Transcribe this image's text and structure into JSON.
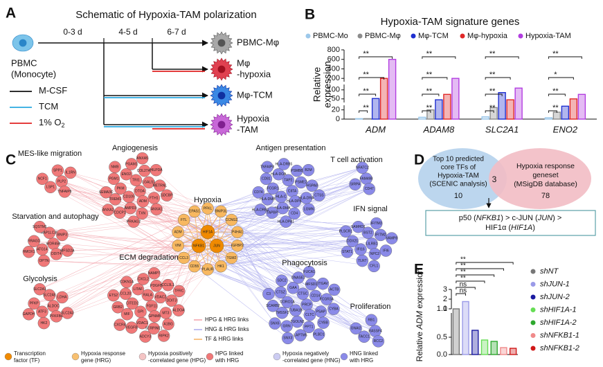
{
  "panel_labels": [
    "A",
    "B",
    "C",
    "D",
    "E"
  ],
  "schematic": {
    "title": "Schematic of Hypoxia-TAM polarization",
    "source_lines": [
      "PBMC",
      "(Monocyte)"
    ],
    "days": [
      "0-3 d",
      "4-5 d",
      "6-7 d"
    ],
    "outcomes": [
      [
        "PBMC-Mφ"
      ],
      [
        "Mφ",
        "-hypoxia"
      ],
      [
        "Mφ-TCM"
      ],
      [
        "Hypoxia",
        "-TAM"
      ]
    ],
    "legend": [
      {
        "label": "M-CSF",
        "color": "#111111"
      },
      {
        "label": "TCM",
        "color": "#2aa8e0"
      },
      {
        "label": "1% O",
        "sub": "2",
        "color": "#e02020"
      }
    ]
  },
  "chart_data": [
    {
      "type": "bar",
      "title": "Hypoxia-TAM signature genes",
      "y_label": [
        "Relative",
        "expression"
      ],
      "categories": [
        "ADM",
        "ADAM8",
        "SLC2A1",
        "ENO2"
      ],
      "series": [
        {
          "name": "PBMC-Mo",
          "color": "#9cc8ea",
          "values": [
            1,
            4,
            5,
            3
          ]
        },
        {
          "name": "PBMC-Mφ",
          "color": "#8c8c8c",
          "values": [
            1,
            20,
            25,
            15
          ]
        },
        {
          "name": "Mφ-TCM",
          "color": "#1f2fd0",
          "values": [
            52,
            45,
            85,
            28
          ]
        },
        {
          "name": "Mφ-hypoxia",
          "color": "#e02828",
          "values": [
            200,
            75,
            45,
            50
          ]
        },
        {
          "name": "Hypoxia-TAM",
          "color": "#b23de0",
          "values": [
            600,
            200,
            110,
            75
          ]
        }
      ],
      "ysegments": [
        {
          "ylim": [
            0,
            30
          ],
          "yticks": [
            0,
            20
          ]
        },
        {
          "ylim": [
            30,
            130
          ],
          "yticks": [
            50,
            100
          ]
        },
        {
          "ylim": [
            130,
            800
          ],
          "yticks": [
            200,
            400,
            600,
            800
          ]
        }
      ],
      "significance": [
        [
          "**",
          "**",
          "**",
          "**"
        ],
        [
          "**",
          "**",
          "**",
          "**"
        ],
        [
          "**",
          "**",
          "**",
          "**"
        ],
        [
          "**",
          "**",
          "*",
          "**"
        ]
      ]
    },
    {
      "type": "bar",
      "y_label": [
        "Relative ",
        "ADM",
        " expression"
      ],
      "categories": [
        "shNT",
        "shJUN-1",
        "shJUN-2",
        "shHIF1A-1",
        "shHIF1A-2",
        "shNFKB1-1",
        "shNFKB1-2"
      ],
      "values": [
        1.0,
        1.75,
        0.7,
        0.42,
        0.38,
        0.2,
        0.18
      ],
      "colors": [
        "#777777",
        "#9a9ae8",
        "#1a1aa0",
        "#66dd55",
        "#2ea82e",
        "#f08a8a",
        "#d01818"
      ],
      "ysegments": [
        {
          "ylim": [
            0,
            1.2
          ],
          "yticks": [
            {
              "value": 0,
              "label": "0.0"
            },
            0.5,
            {
              "value": 1,
              "label": "1.0"
            }
          ]
        },
        {
          "ylim": [
            1,
            3
          ],
          "yticks": [
            1,
            2,
            3
          ]
        }
      ],
      "significance": [
        "ns",
        "ns",
        "**",
        "**",
        "**",
        "**"
      ]
    }
  ],
  "network": {
    "clusters": [
      {
        "title": "MES-like migration",
        "color": "#f07878",
        "genes": [
          "PLP2",
          "LSP1",
          "SPP1",
          "TNFAIP6",
          "NCF1",
          "IL1RN"
        ]
      },
      {
        "title": "Angiogenesis",
        "color": "#f07878",
        "genes": [
          "DTOA",
          "CD109",
          "TRI1",
          "ADM",
          "PKM",
          "LGALS1",
          "AMPD3",
          "ENO2",
          "FTH1",
          "TREM1",
          "COL27A1",
          "TXN",
          "PGM1",
          "METRNL",
          "CDCP1",
          "PGAM1",
          "ANXA1",
          "SEMA3C",
          "HILPDA",
          "PRKAG2",
          "NMB",
          "SDCBP",
          "ANXA2",
          "ANXA5"
        ]
      },
      {
        "title": "Starvation and autophagy",
        "color": "#f07878",
        "genes": [
          "WDR45B",
          "ATG14",
          "MAP1LC3B",
          "DDIT4",
          "RRAGD",
          "BNIP3",
          "OPTN",
          "SQSTM1",
          "MFSD2A",
          "HMOX1"
        ]
      },
      {
        "title": "Glycolysis",
        "color": "#f07878",
        "genes": [
          "ALDOC",
          "ATF3",
          "SLC2A5",
          "PFKFB4",
          "PFKP",
          "LDHA",
          "HK2",
          "SLC2A1",
          "SLC2A3",
          "GAPDH"
        ]
      },
      {
        "title": "ECM degradation",
        "color": "#f07878",
        "genes": [
          "FGF11",
          "GPI",
          "RALA",
          "GPNMB",
          "CITED2",
          "VDAC2",
          "VDAC1",
          "LITAF",
          "MT3",
          "MIF",
          "PDGFB",
          "SERPINE1",
          "CCL20",
          "DDIT3",
          "VEGFB",
          "CXCL2",
          "A1BG",
          "GRB2",
          "CCL3L1",
          "ADCY3",
          "CDKN1A",
          "ALDOA",
          "CXCR4",
          "NAMPT",
          "RIPK2",
          "ETS2",
          "TFRC"
        ]
      },
      {
        "title": "Antigen presentation",
        "color": "#8a8ae8",
        "genes": [
          "CIITA",
          "HLA-C",
          "TAP2",
          "HLA-DPB1",
          "FCGR1",
          "PSME2",
          "HLA-DMA",
          "HLA-DOA",
          "HLA-DRA",
          "HLA-DMB",
          "PSMB8",
          "CD4",
          "CD81",
          "HSPA8",
          "TAPBP",
          "HLA-DRB5",
          "LGMN",
          "CD74",
          "B2M",
          "HLA-DPA1",
          "TNFAIP8",
          "CTSS",
          "HLA-DRB1"
        ]
      },
      {
        "title": "T cell activation",
        "color": "#8a8ae8",
        "genes": [
          "FAM49B",
          "SIRPA",
          "NFATC2",
          "CD47"
        ]
      },
      {
        "title": "IFN signal",
        "color": "#8a8ae8",
        "genes": [
          "LILRB1",
          "IFI16",
          "BST2",
          "NPC2",
          "DDX21",
          "IFITM2",
          "TLR7",
          "SAMHD1",
          "IFI6",
          "STAT1",
          "IFITM3",
          "CFL1",
          "PLSCR1",
          "VAMP8"
        ]
      },
      {
        "title": "Phagocytosis",
        "color": "#8a8ae8",
        "genes": [
          "PRCP",
          "TUBA1B",
          "CTSC",
          "CLTC",
          "CORO1A",
          "CD14",
          "TGOLN2",
          "GAA",
          "PSAP",
          "TMSSF2",
          "MFSD1",
          "PPT1",
          "CTSZ",
          "FCGR3A",
          "GRN",
          "DNASE2",
          "CYBB",
          "SCARB2",
          "ITGAV",
          "LAPTM5",
          "SDC2",
          "CYBA",
          "SNX6",
          "FUCA1",
          "PLBD1",
          "C3",
          "ACTB",
          "SNX3"
        ]
      },
      {
        "title": "Proliferation",
        "color": "#8a8ae8",
        "genes": [
          "RASSF4",
          "TACC1",
          "RB1",
          "RCC2",
          "GNAI2"
        ]
      }
    ],
    "hypoxia": {
      "title": "Hypoxia",
      "color": "#f8b860",
      "genes": [
        "PFKL",
        "BNIP3L",
        "CCNG2",
        "P4HA1",
        "IGFBP2",
        "TGM2",
        "HK1",
        "PLAUR",
        "CD55",
        "CCL3",
        "VIM",
        "ADM",
        "FTL",
        "EPAS1"
      ]
    },
    "tfs": {
      "color": "#f08a00",
      "genes": [
        "HIF1A",
        "NFKB1",
        "JUN"
      ]
    },
    "link_legend": [
      {
        "label": "HPG & HRG links",
        "color": "#f2a0a8"
      },
      {
        "label": "HNG & HRG links",
        "color": "#aaaaee"
      },
      {
        "label": "TF & HRG links",
        "color": "#f5b060"
      }
    ],
    "legend": [
      {
        "lines": [
          "Transcription",
          "factor (TF)"
        ],
        "color": "#f08a00"
      },
      {
        "lines": [
          "Hypoxia response",
          "gene (HRG)"
        ],
        "color": "#f8c070"
      },
      {
        "lines": [
          "Hypoxia positively",
          "-correlated gene (HPG)"
        ],
        "color": "#f4c4c4"
      },
      {
        "lines": [
          "HPG linked",
          "with HRG"
        ],
        "color": "#f07878"
      },
      {
        "lines": [
          "Hypoxia negatively",
          "-correlated gene (HNG)"
        ],
        "color": "#ccccf2"
      },
      {
        "lines": [
          "HNG linked",
          "with HRG"
        ],
        "color": "#8a8ae8"
      }
    ]
  },
  "venn": {
    "left": {
      "lines": [
        "Top 10 predicted",
        "core TFs of",
        "Hypoxia-TAM",
        "(SCENIC analysis)"
      ],
      "count": 10,
      "color": "#bcd6ee"
    },
    "right": {
      "lines": [
        "Hypoxia response",
        "geneset",
        "(MSigDB database)"
      ],
      "count": 78,
      "color": "#f2bcc4"
    },
    "overlap": 3,
    "result": [
      [
        {
          "text": "p50 ("
        },
        {
          "text": "NFKB1",
          "italic": true
        },
        {
          "text": ") > c-JUN ("
        },
        {
          "text": "JUN",
          "italic": true
        },
        {
          "text": ") >"
        }
      ],
      [
        {
          "text": "HIF1α ("
        },
        {
          "text": "HIF1A",
          "italic": true
        },
        {
          "text": ")"
        }
      ]
    ]
  }
}
